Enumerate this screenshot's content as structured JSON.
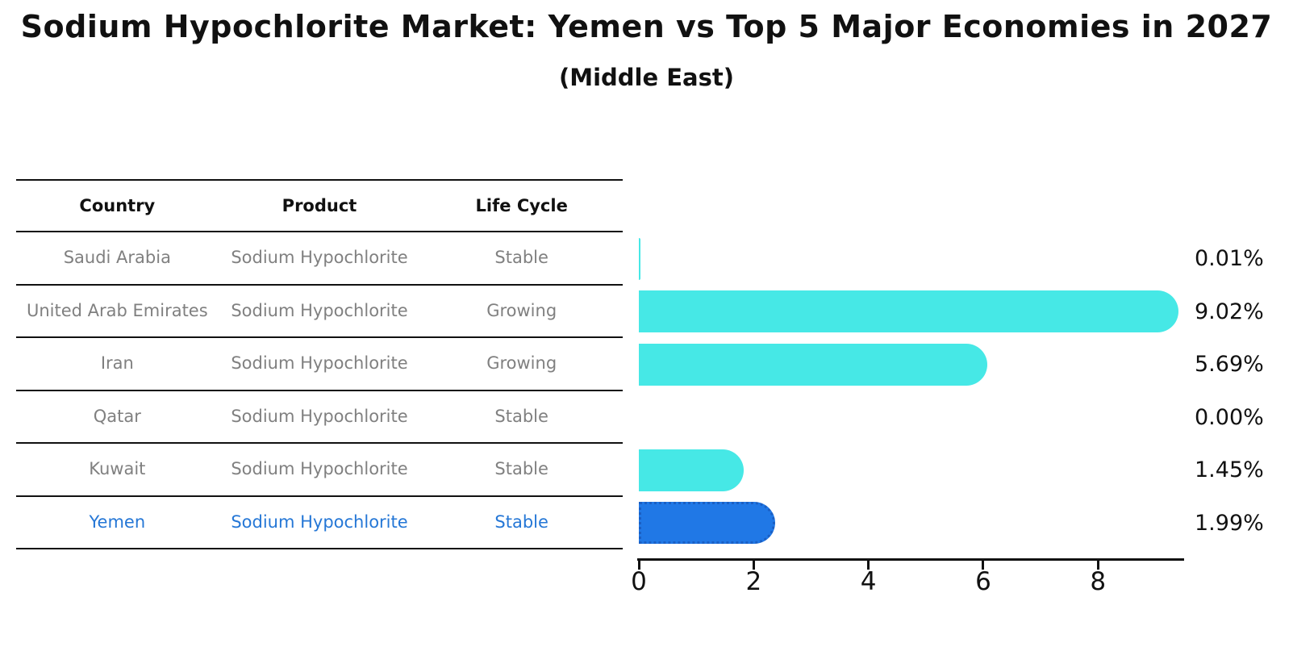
{
  "title": "Sodium Hypochlorite Market: Yemen vs Top 5 Major Economies in 2027",
  "subtitle": "(Middle East)",
  "table": {
    "headers": [
      "Country",
      "Product",
      "Life Cycle"
    ],
    "rows": [
      {
        "country": "Saudi Arabia",
        "product": "Sodium Hypochlorite",
        "life_cycle": "Stable",
        "highlighted": false
      },
      {
        "country": "United Arab Emirates",
        "product": "Sodium Hypochlorite",
        "life_cycle": "Growing",
        "highlighted": false
      },
      {
        "country": "Iran",
        "product": "Sodium Hypochlorite",
        "life_cycle": "Growing",
        "highlighted": false
      },
      {
        "country": "Qatar",
        "product": "Sodium Hypochlorite",
        "life_cycle": "Stable",
        "highlighted": false
      },
      {
        "country": "Kuwait",
        "product": "Sodium Hypochlorite",
        "life_cycle": "Stable",
        "highlighted": false
      },
      {
        "country": "Yemen",
        "product": "Sodium Hypochlorite",
        "life_cycle": "Stable",
        "highlighted": true
      }
    ]
  },
  "chart_data": {
    "type": "bar",
    "orientation": "horizontal",
    "title": "Sodium Hypochlorite Market: Yemen vs Top 5 Major Economies in 2027",
    "subtitle": "(Middle East)",
    "categories": [
      "Saudi Arabia",
      "United Arab Emirates",
      "Iran",
      "Qatar",
      "Kuwait",
      "Yemen"
    ],
    "values": [
      0.01,
      9.02,
      5.69,
      0.0,
      1.45,
      1.99
    ],
    "value_labels": [
      "0.01%",
      "9.02%",
      "5.69%",
      "0.00%",
      "1.45%",
      "1.99%"
    ],
    "x_ticks": [
      0,
      2,
      4,
      6,
      8
    ],
    "xlim": [
      0,
      9.5
    ],
    "xlabel": "",
    "ylabel": "",
    "grid": false,
    "legend": false,
    "bar_color": "#46E8E6",
    "highlight_color": "#2078E6",
    "highlight_border_color": "#1A5FC4",
    "highlight_index": 5
  },
  "colors": {
    "background": "#FFFFFF",
    "text": "#111111",
    "muted_text": "#808080",
    "highlight_text": "#2577D6",
    "line": "#111111"
  }
}
